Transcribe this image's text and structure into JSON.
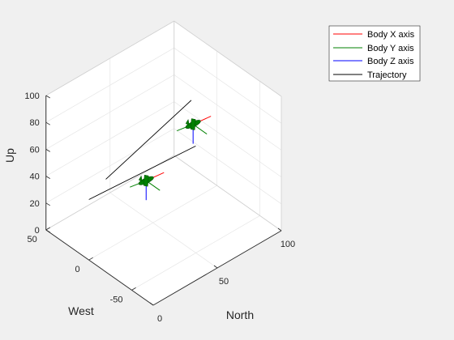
{
  "chart_data": {
    "type": "line3d",
    "xlabel": "North",
    "ylabel": "West",
    "zlabel": "Up",
    "xlim": [
      0,
      100
    ],
    "ylim": [
      -75,
      50
    ],
    "zlim": [
      0,
      100
    ],
    "xticks": [
      0,
      50,
      100
    ],
    "yticks": [
      50,
      0,
      -50
    ],
    "zticks": [
      0,
      20,
      40,
      60,
      80,
      100
    ],
    "grid": true,
    "legend_position": "top-right",
    "legend": [
      {
        "label": "Body X axis",
        "color": "#ff0000"
      },
      {
        "label": "Body Y axis",
        "color": "#008000"
      },
      {
        "label": "Body Z axis",
        "color": "#0000ff"
      },
      {
        "label": "Trajectory",
        "color": "#000000"
      }
    ],
    "series": [
      {
        "name": "Trajectory",
        "color": "#000000",
        "points": [
          {
            "north": 0,
            "west": 0,
            "up": 45
          },
          {
            "north": 70,
            "west": -20,
            "up": 55
          },
          {
            "north": 40,
            "west": 40,
            "up": 20
          },
          {
            "north": 100,
            "west": 30,
            "up": 50
          }
        ]
      }
    ],
    "aircraft": [
      {
        "north": 40,
        "west": -7,
        "up": 40,
        "color": "#008000"
      },
      {
        "north": 78,
        "west": -5,
        "up": 60,
        "color": "#008000"
      }
    ]
  }
}
